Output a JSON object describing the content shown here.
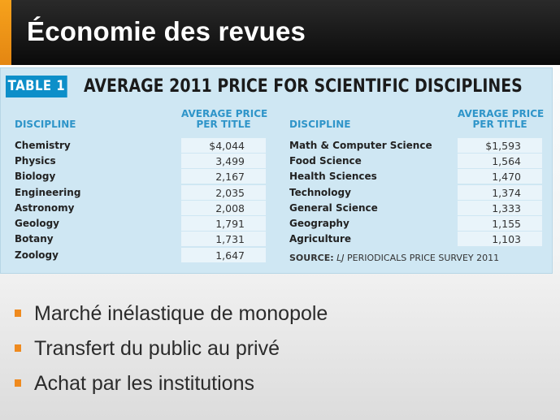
{
  "slide": {
    "title": "Économie des revues",
    "accent_color": "#f08c1a",
    "bullets": [
      "Marché inélastique de monopole",
      "Transfert du public au privé",
      "Achat par les institutions"
    ]
  },
  "table": {
    "label": "TABLE 1",
    "heading": "AVERAGE 2011 PRICE FOR SCIENTIFIC DISCIPLINES",
    "col_discipline": "DISCIPLINE",
    "col_price_line1": "AVERAGE PRICE",
    "col_price_line2": "PER TITLE",
    "left_rows": [
      {
        "discipline": "Chemistry",
        "price": "$4,044"
      },
      {
        "discipline": "Physics",
        "price": "3,499"
      },
      {
        "discipline": "Biology",
        "price": "2,167"
      },
      {
        "discipline": "Engineering",
        "price": "2,035"
      },
      {
        "discipline": "Astronomy",
        "price": "2,008"
      },
      {
        "discipline": "Geology",
        "price": "1,791"
      },
      {
        "discipline": "Botany",
        "price": "1,731"
      },
      {
        "discipline": "Zoology",
        "price": "1,647"
      }
    ],
    "right_rows": [
      {
        "discipline": "Math & Computer Science",
        "price": "$1,593"
      },
      {
        "discipline": "Food Science",
        "price": "1,564"
      },
      {
        "discipline": "Health Sciences",
        "price": "1,470"
      },
      {
        "discipline": "Technology",
        "price": "1,374"
      },
      {
        "discipline": "General Science",
        "price": "1,333"
      },
      {
        "discipline": "Geography",
        "price": "1,155"
      },
      {
        "discipline": "Agriculture",
        "price": "1,103"
      }
    ],
    "source_label": "SOURCE:",
    "source_lj": "LJ",
    "source_text": "PERIODICALS PRICE SURVEY 2011"
  }
}
